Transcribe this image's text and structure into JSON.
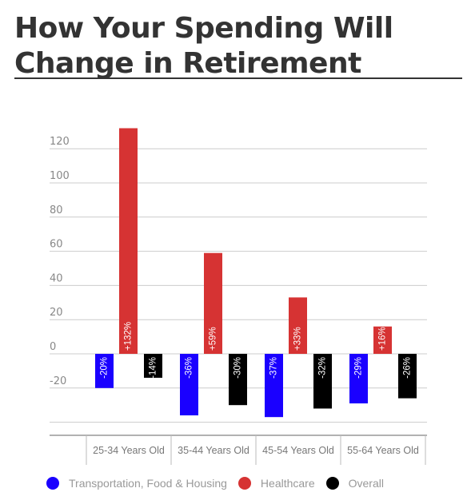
{
  "title": "How Your Spending Will Change in Retirement",
  "colors": {
    "transport": "#1a00ff",
    "healthcare": "#d63333",
    "overall": "#000000",
    "grid": "#cccccc",
    "axis_text": "#888888"
  },
  "chart_data": {
    "type": "bar",
    "title": "How Your Spending Will Change in Retirement",
    "xlabel": "",
    "ylabel": "",
    "categories": [
      "25-34 Years Old",
      "35-44 Years Old",
      "45-54 Years Old",
      "55-64 Years Old"
    ],
    "ylim": [
      -40,
      130
    ],
    "yticks": [
      120,
      100,
      80,
      60,
      40,
      20,
      0,
      -20
    ],
    "grid": true,
    "legend_position": "bottom",
    "series": [
      {
        "name": "Transportation, Food & Housing",
        "color": "#1a00ff",
        "values": [
          -20,
          -36,
          -37,
          -29
        ],
        "labels": [
          "-20%",
          "-36%",
          "-37%",
          "-29%"
        ]
      },
      {
        "name": "Healthcare",
        "color": "#d63333",
        "values": [
          132,
          59,
          33,
          16
        ],
        "labels": [
          "+132%",
          "+59%",
          "+33%",
          "+16%"
        ]
      },
      {
        "name": "Overall",
        "color": "#000000",
        "values": [
          -14,
          -30,
          -32,
          -26
        ],
        "labels": [
          "-14%",
          "-30%",
          "-32%",
          "-26%"
        ]
      }
    ]
  }
}
